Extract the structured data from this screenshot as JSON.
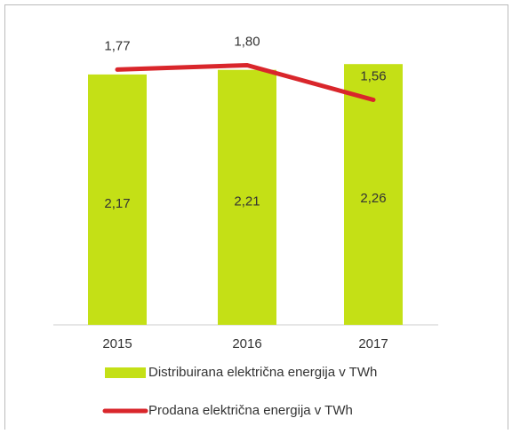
{
  "chart_data": {
    "type": "bar-line",
    "categories": [
      "2015",
      "2016",
      "2017"
    ],
    "series": [
      {
        "name": "Distribuirana električna energija v TWh",
        "type": "bar",
        "color": "#c4e016",
        "values": [
          2.17,
          2.21,
          2.26
        ],
        "value_labels": [
          "2,17",
          "2,21",
          "2,26"
        ]
      },
      {
        "name": "Prodana električna energija v TWh",
        "type": "line",
        "axis": "y2",
        "color": "#d9262b",
        "values": [
          1.77,
          1.8,
          1.56
        ],
        "value_labels": [
          "1,77",
          "1,80",
          "1,56"
        ]
      }
    ],
    "ylim": [
      0,
      2.5
    ],
    "y2lim": [
      0,
      2.0
    ],
    "legend": "bottom"
  }
}
